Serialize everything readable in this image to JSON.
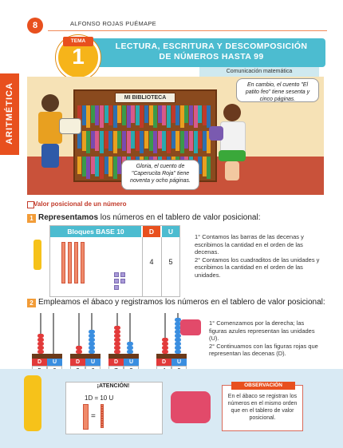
{
  "header": {
    "page_number": "8",
    "author": "ALFONSO ROJAS PUÉMAPE",
    "tema_label": "TEMA",
    "tema_number": "1",
    "title_line1": "LECTURA, ESCRITURA Y DESCOMPOSICIÓN",
    "title_line2": "DE NÚMEROS HASTA 99",
    "subject": "Comunicación matemática"
  },
  "side_tab": "ARITMÉTICA",
  "scene": {
    "sign": "MI BIBLIOTECA",
    "bubble_left": "Gloria, el cuento de \"Caperucita Roja\" tiene noventa y ocho páginas.",
    "bubble_right": "En cambio, el cuento \"El patito feo\" tiene sesenta y cinco páginas."
  },
  "section_title": "Valor posicional de un número",
  "step1": {
    "num": "1",
    "bold": "Representamos",
    "text": " los números en el tablero de valor posicional:",
    "table": {
      "header_blocks": "Bloques BASE 10",
      "header_d": "D",
      "header_u": "U",
      "value_d": "4",
      "value_u": "5",
      "tens": 4,
      "units": 5
    },
    "notes": [
      "1° Contamos las barras de las decenas y escribimos la cantidad en el orden de las decenas.",
      "2° Contamos los cuadraditos de las unidades y escribimos la cantidad en el orden de las unidades."
    ]
  },
  "step2": {
    "num": "2",
    "text": "Empleamos el ábaco y registramos los números en el tablero de valor posicional:",
    "abacuses": [
      {
        "d_label": "D",
        "u_label": "U",
        "d": "5",
        "u": "0"
      },
      {
        "d_label": "D",
        "u_label": "U",
        "d": "2",
        "u": "6"
      },
      {
        "d_label": "D",
        "u_label": "U",
        "d": "7",
        "u": "3"
      },
      {
        "d_label": "D",
        "u_label": "U",
        "d": "4",
        "u": "9"
      }
    ],
    "notes": [
      "1° Comenzamos por la derecha; las figuras azules representan las unidades (U).",
      "2° Continuamos con las figuras rojas que representan las decenas (D)."
    ]
  },
  "atencion": {
    "title": "¡ATENCIÓN!",
    "equation": "1D = 10 U"
  },
  "observacion": {
    "title": "OBSERVACIÓN",
    "text": "En el ábaco se registran los números en el mismo orden que en el tablero de valor posicional."
  },
  "colors": {
    "accent_orange": "#e8501e",
    "title_blue": "#4cbcd0",
    "ten_bar": "#f08a6a",
    "unit_cube": "#a99ad8",
    "bead_red": "#e23a3a",
    "bead_blue": "#3a8ee0"
  }
}
